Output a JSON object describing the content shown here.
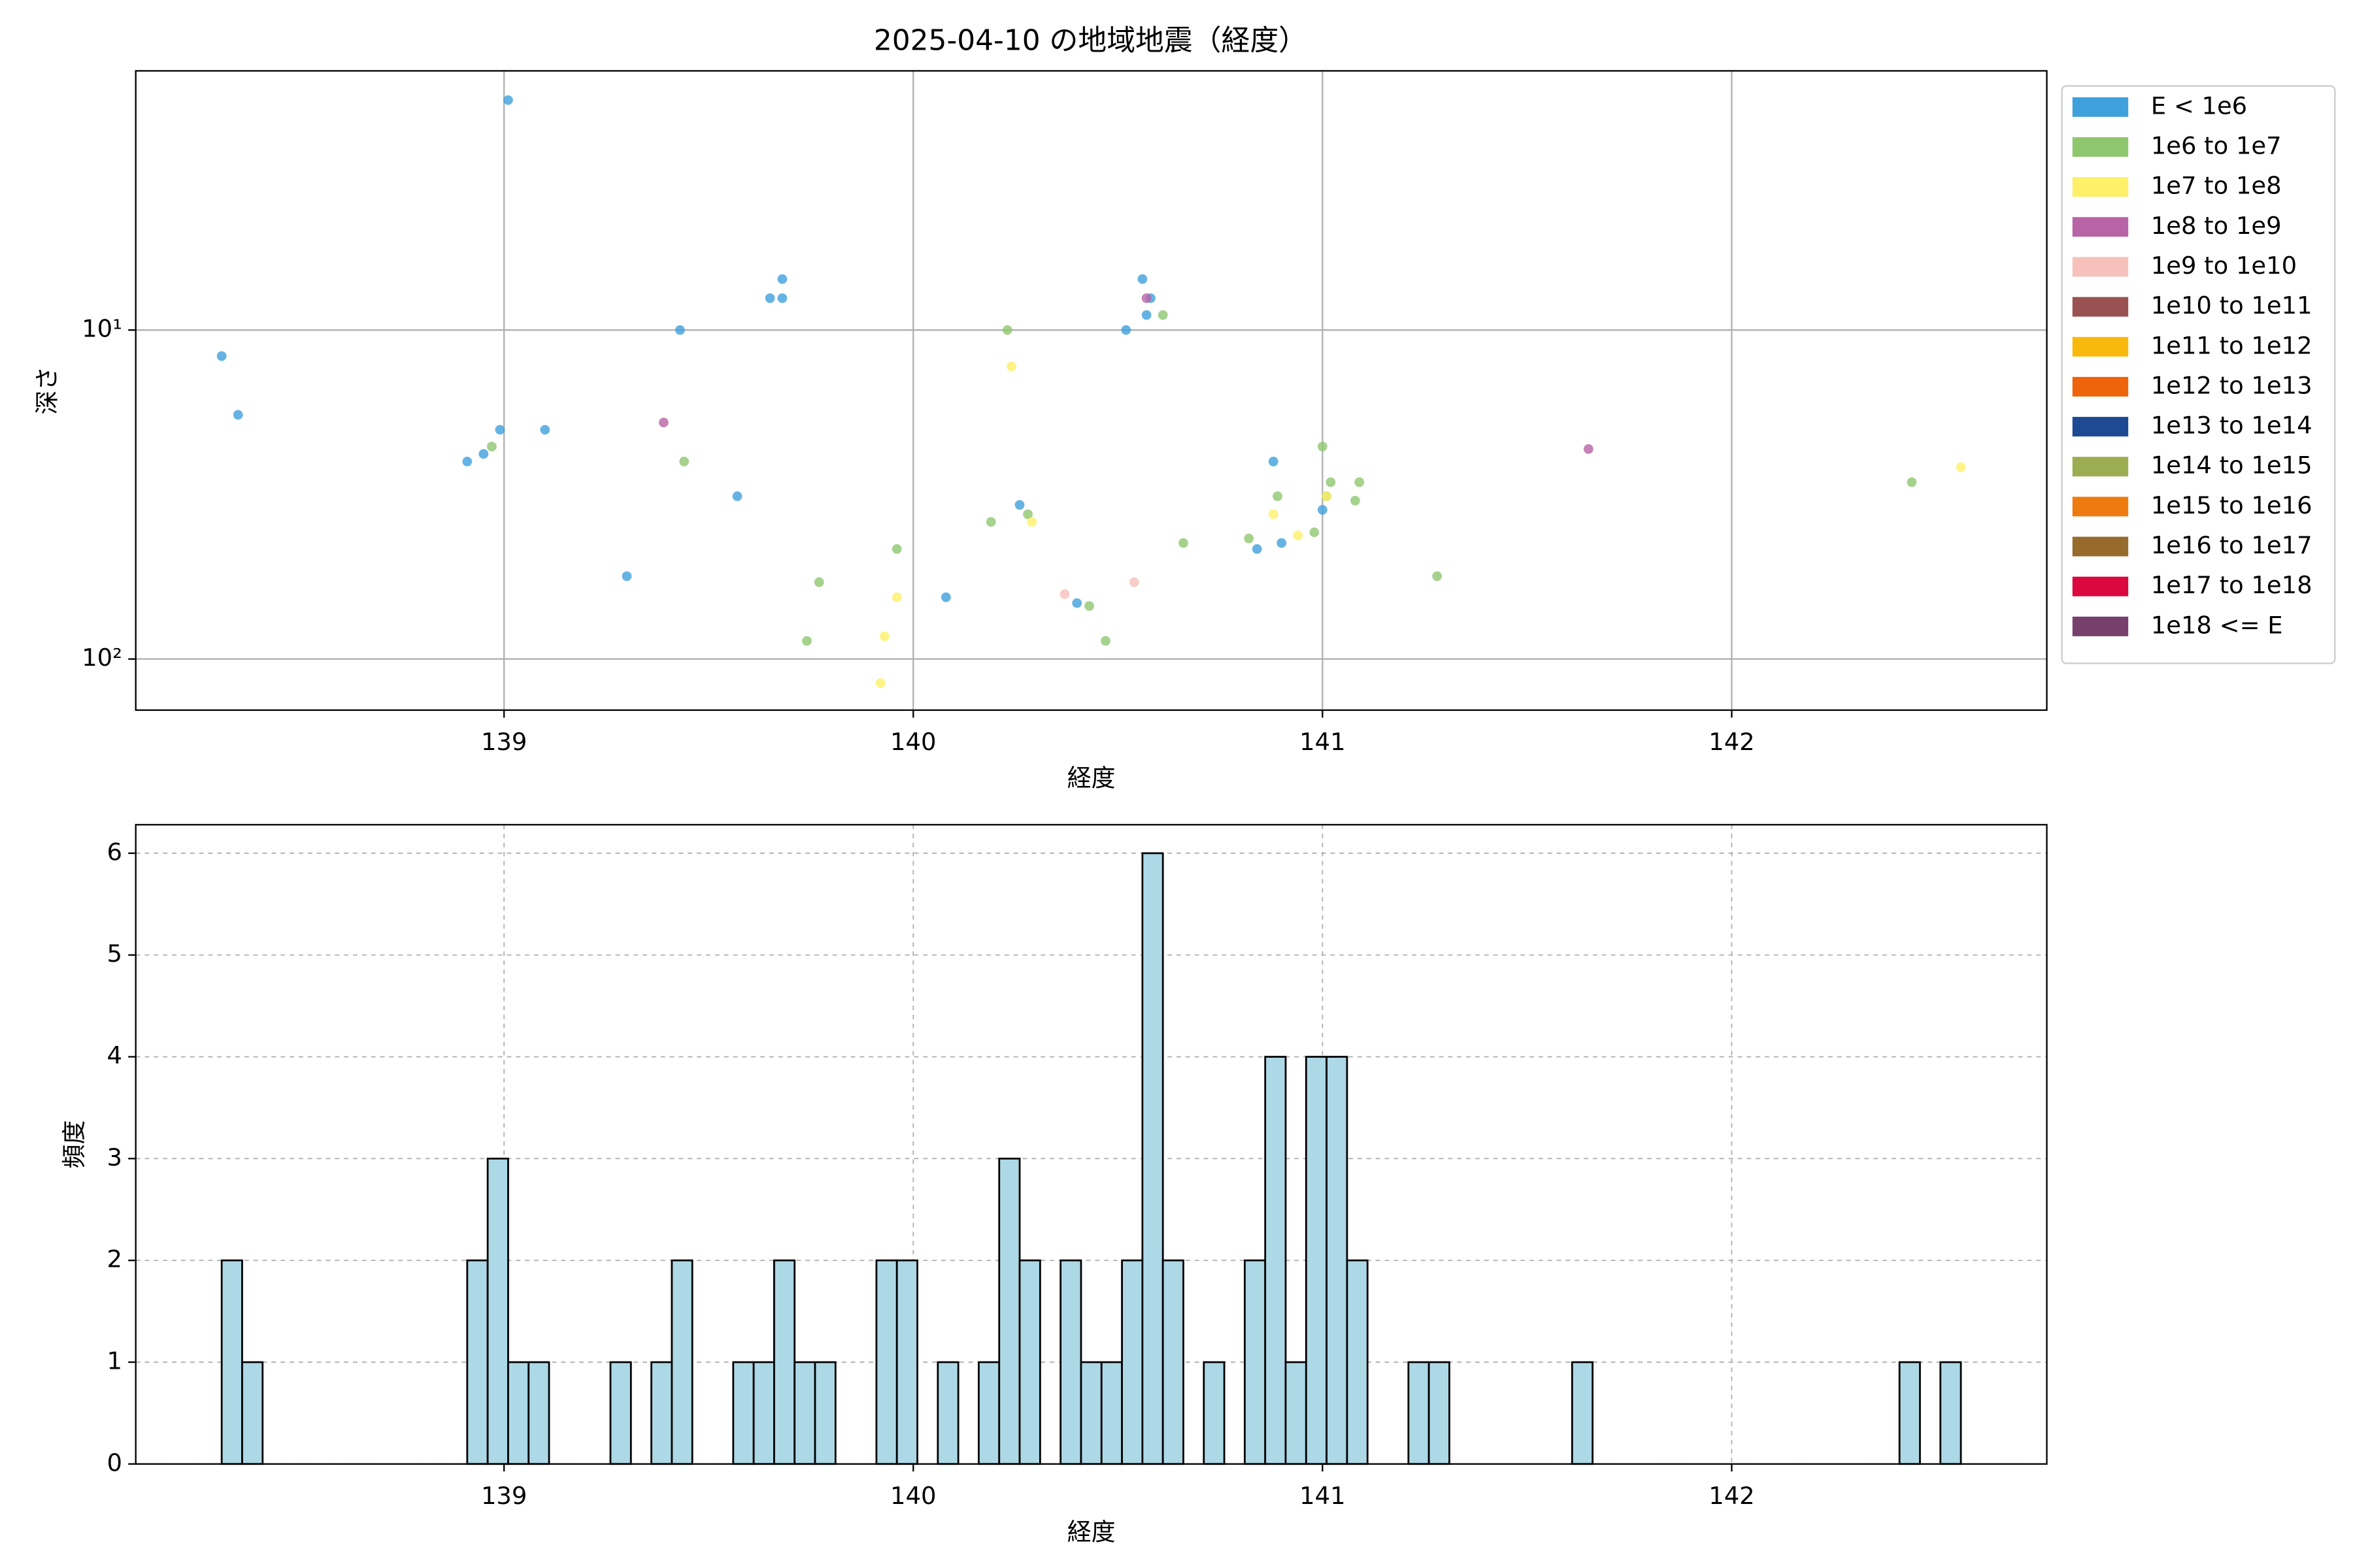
{
  "chart_data": [
    {
      "type": "scatter",
      "title": "2025-04-10 の地域地震（経度）",
      "xlabel": "経度",
      "ylabel": "深さ",
      "xlim": [
        138.1,
        142.77
      ],
      "xticks": [
        139,
        140,
        141,
        142
      ],
      "ylim": [
        1.63,
        143
      ],
      "yscale": "log",
      "yinvert": true,
      "yticks": [
        {
          "value": 10,
          "label": "10¹"
        },
        {
          "value": 100,
          "label": "10²"
        }
      ],
      "grid": true,
      "legend": "outside upper right",
      "series": [
        {
          "name": "E < 1e6",
          "color": "#3fa0dc",
          "x": [
            138.31,
            138.35,
            139.01,
            138.91,
            138.95,
            138.99,
            139.1,
            139.3,
            139.43,
            139.57,
            139.65,
            139.68,
            139.68,
            140.08,
            140.26,
            140.4,
            140.52,
            140.56,
            140.57,
            140.58,
            140.84,
            140.88,
            140.9,
            141.0
          ],
          "values": [
            12.0,
            18.1,
            2.0,
            25.1,
            23.8,
            20.1,
            20.1,
            56.0,
            10,
            32.0,
            8.0,
            8.0,
            7.0,
            64.9,
            34.0,
            67.6,
            10,
            7.0,
            9.0,
            8.0,
            46.3,
            25.1,
            44.4,
            35.2
          ]
        },
        {
          "name": "1e6 to 1e7",
          "color": "#8fc76f",
          "x": [
            138.97,
            139.44,
            139.77,
            139.74,
            139.96,
            140.19,
            140.23,
            140.28,
            140.43,
            140.47,
            140.61,
            140.66,
            140.82,
            140.89,
            140.98,
            141.0,
            141.01,
            141.02,
            141.08,
            141.09,
            141.28,
            142.44
          ],
          "values": [
            22.6,
            25.1,
            58.4,
            88.1,
            46.3,
            38.3,
            10,
            36.3,
            69.0,
            88.1,
            9.0,
            44.4,
            43.0,
            32.0,
            41.2,
            22.6,
            32.0,
            29.0,
            33.0,
            29.0,
            56.0,
            29.0
          ]
        },
        {
          "name": "1e7 to 1e8",
          "color": "#fef068",
          "x": [
            139.92,
            139.93,
            139.96,
            140.24,
            140.29,
            140.88,
            140.94,
            141.01,
            142.56
          ],
          "values": [
            118.3,
            85.3,
            64.9,
            12.9,
            38.3,
            36.3,
            42.1,
            32.0,
            26.1
          ]
        },
        {
          "name": "1e8 to 1e9",
          "color": "#b863a5",
          "x": [
            139.39,
            140.57,
            141.65
          ],
          "values": [
            19.1,
            8.0,
            23.0
          ]
        },
        {
          "name": "1e9 to 1e10",
          "color": "#f6c1bb",
          "x": [
            140.37,
            140.54
          ],
          "values": [
            63.5,
            58.4
          ]
        },
        {
          "name": "1e10 to 1e11",
          "color": "#9a5151",
          "x": [],
          "values": []
        },
        {
          "name": "1e11 to 1e12",
          "color": "#f9b80c",
          "x": [],
          "values": []
        },
        {
          "name": "1e12 to 1e13",
          "color": "#ee640a",
          "x": [],
          "values": []
        },
        {
          "name": "1e13 to 1e14",
          "color": "#1e4a93",
          "x": [],
          "values": []
        },
        {
          "name": "1e14 to 1e15",
          "color": "#9dad52",
          "x": [],
          "values": []
        },
        {
          "name": "1e15 to 1e16",
          "color": "#ee7b10",
          "x": [],
          "values": []
        },
        {
          "name": "1e16 to 1e17",
          "color": "#966b2b",
          "x": [],
          "values": []
        },
        {
          "name": "1e17 to 1e18",
          "color": "#db0840",
          "x": [],
          "values": []
        },
        {
          "name": "1e18 <= E",
          "color": "#773f6c",
          "x": [],
          "values": []
        }
      ]
    },
    {
      "type": "histogram",
      "xlabel": "経度",
      "ylabel": "頻度",
      "color": "#add8e6",
      "xlim": [
        138.1,
        142.77
      ],
      "xticks": [
        139,
        140,
        141,
        142
      ],
      "ylim": [
        0,
        6.28
      ],
      "yticks": [
        0,
        1,
        2,
        3,
        4,
        5,
        6
      ],
      "grid": true,
      "bins": [
        138.31,
        138.36,
        138.41,
        138.46,
        138.51,
        138.56,
        138.61,
        138.66,
        138.71,
        138.76,
        138.81,
        138.86,
        138.91,
        138.96,
        139.01,
        139.06,
        139.11,
        139.16,
        139.21,
        139.26,
        139.31,
        139.36,
        139.41,
        139.46,
        139.51,
        139.56,
        139.61,
        139.66,
        139.71,
        139.76,
        139.81,
        139.86,
        139.91,
        139.96,
        140.01,
        140.06,
        140.11,
        140.16,
        140.21,
        140.26,
        140.31,
        140.36,
        140.41,
        140.46,
        140.51,
        140.56,
        140.61,
        140.66,
        140.71,
        140.76,
        140.81,
        140.86,
        140.91,
        140.96,
        141.01,
        141.06,
        141.11,
        141.16,
        141.21,
        141.26,
        141.31,
        141.36,
        141.41,
        141.46,
        141.51,
        141.56,
        141.61,
        141.66,
        141.71,
        141.76,
        141.81,
        141.86,
        141.91,
        141.96,
        142.01,
        142.06,
        142.11,
        142.16,
        142.21,
        142.26,
        142.31,
        142.36,
        142.41,
        142.46,
        142.51,
        142.56
      ],
      "counts": [
        2,
        1,
        0,
        0,
        0,
        0,
        0,
        0,
        0,
        0,
        0,
        0,
        2,
        3,
        1,
        1,
        0,
        0,
        0,
        1,
        0,
        1,
        2,
        0,
        0,
        1,
        1,
        2,
        1,
        1,
        0,
        0,
        2,
        2,
        0,
        1,
        0,
        1,
        3,
        2,
        0,
        2,
        1,
        1,
        2,
        6,
        2,
        0,
        1,
        0,
        2,
        4,
        1,
        4,
        4,
        2,
        0,
        0,
        1,
        1,
        0,
        0,
        0,
        0,
        0,
        0,
        1,
        0,
        0,
        0,
        0,
        0,
        0,
        0,
        0,
        0,
        0,
        0,
        0,
        0,
        0,
        0,
        1,
        0,
        1
      ]
    }
  ]
}
